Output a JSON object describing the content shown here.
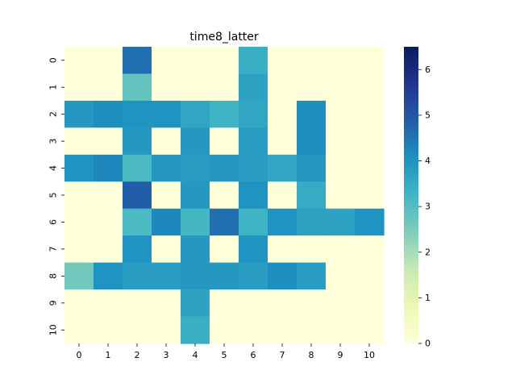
{
  "chart_data": {
    "type": "heatmap",
    "title": "time8_latter",
    "x_categories": [
      "0",
      "1",
      "2",
      "3",
      "4",
      "5",
      "6",
      "7",
      "8",
      "9",
      "10"
    ],
    "y_categories": [
      "0",
      "1",
      "2",
      "3",
      "4",
      "5",
      "6",
      "7",
      "8",
      "9",
      "10"
    ],
    "values": [
      [
        0,
        0,
        4.6,
        0,
        0,
        0,
        3.4,
        0,
        0,
        0,
        0
      ],
      [
        0,
        0,
        2.8,
        0,
        0,
        0,
        3.7,
        0,
        0,
        0,
        0
      ],
      [
        3.9,
        4.1,
        4.0,
        4.0,
        3.6,
        3.3,
        3.6,
        0,
        4.1,
        0,
        0
      ],
      [
        0,
        0,
        3.9,
        0,
        3.9,
        0,
        3.8,
        0,
        4.1,
        0,
        0
      ],
      [
        4.0,
        4.2,
        3.1,
        3.9,
        3.8,
        3.9,
        3.8,
        3.6,
        3.9,
        0,
        0
      ],
      [
        0,
        0,
        4.9,
        0,
        3.9,
        0,
        4.0,
        0,
        3.5,
        0,
        0
      ],
      [
        0,
        0,
        3.1,
        4.2,
        3.2,
        4.6,
        3.3,
        4.0,
        3.7,
        3.7,
        4.0
      ],
      [
        0,
        0,
        4.0,
        0,
        3.9,
        0,
        4.0,
        0,
        0,
        0,
        0
      ],
      [
        2.6,
        4.0,
        3.8,
        3.8,
        3.9,
        3.9,
        3.8,
        4.1,
        3.8,
        0,
        0
      ],
      [
        0,
        0,
        0,
        0,
        3.7,
        0,
        0,
        0,
        0,
        0,
        0
      ],
      [
        0,
        0,
        0,
        0,
        3.4,
        0,
        0,
        0,
        0,
        0,
        0
      ]
    ],
    "colorbar": {
      "colormap": "YlGnBu",
      "vmin": 0,
      "vmax": 6.5,
      "ticks": [
        "0",
        "1",
        "2",
        "3",
        "4",
        "5",
        "6"
      ]
    }
  }
}
